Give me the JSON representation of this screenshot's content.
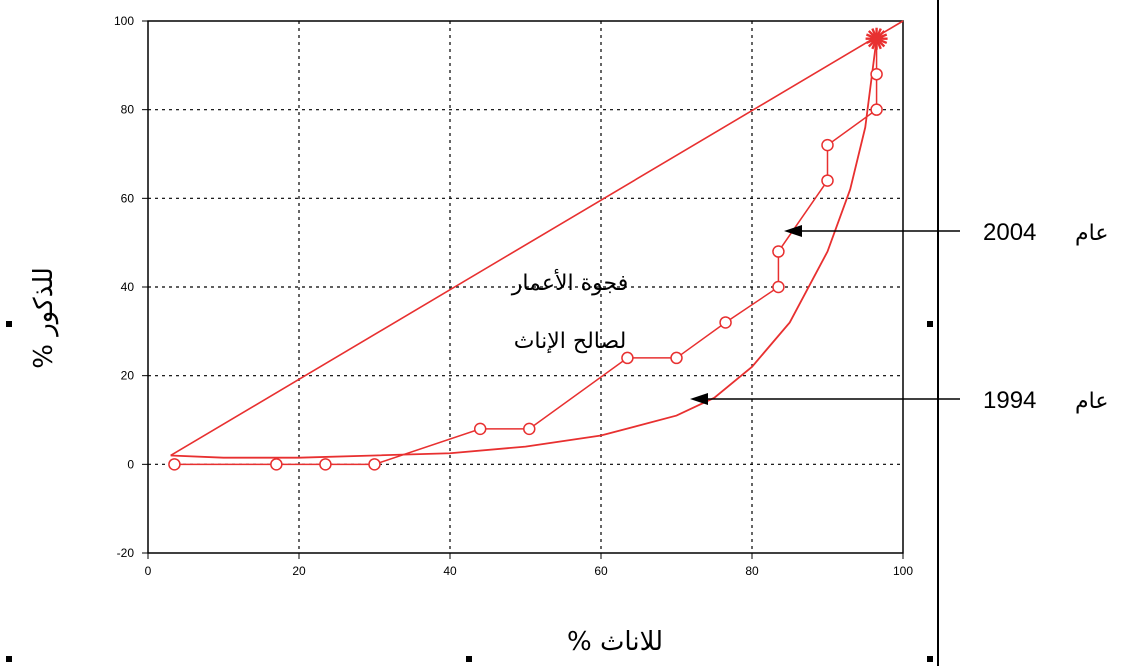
{
  "chart_data": {
    "type": "line",
    "xlabel": "% للاناث",
    "ylabel": "% للذكور",
    "xlim": [
      0,
      100
    ],
    "ylim": [
      -20,
      100
    ],
    "x_ticks": [
      0,
      20,
      40,
      60,
      80,
      100
    ],
    "y_ticks": [
      -20,
      0,
      20,
      40,
      60,
      80,
      100
    ],
    "grid": true,
    "annotation_lines": [
      "فجوة الأعمار",
      "لصالح الإناث"
    ],
    "series": [
      {
        "name": "عام 2004",
        "label_prefix": "عام",
        "label_year": "2004",
        "color": "#e83030",
        "markers": "circle",
        "points": [
          [
            3.5,
            0
          ],
          [
            17,
            0
          ],
          [
            23.5,
            0
          ],
          [
            30,
            0
          ],
          [
            44,
            8
          ],
          [
            50.5,
            8
          ],
          [
            63.5,
            24
          ],
          [
            70,
            24
          ],
          [
            76.5,
            32
          ],
          [
            83.5,
            48
          ],
          [
            83.5,
            40
          ],
          [
            90,
            64
          ],
          [
            90,
            72
          ],
          [
            96.5,
            88
          ],
          [
            96.5,
            80
          ]
        ]
      },
      {
        "name": "عام 1994",
        "label_prefix": "عام",
        "label_year": "1994",
        "color": "#e83030",
        "markers": "none",
        "points": [
          [
            3,
            2
          ],
          [
            10,
            1.5
          ],
          [
            20,
            1.5
          ],
          [
            30,
            2
          ],
          [
            40,
            2.5
          ],
          [
            50,
            4
          ],
          [
            60,
            6.5
          ],
          [
            70,
            11
          ],
          [
            75,
            15
          ],
          [
            80,
            22
          ],
          [
            85,
            32
          ],
          [
            90,
            48
          ],
          [
            93,
            62
          ],
          [
            95,
            76
          ],
          [
            96.5,
            96
          ]
        ]
      }
    ],
    "equality_line": [
      [
        3,
        2
      ],
      [
        100,
        100
      ]
    ],
    "endpoint": [
      96.5,
      96
    ]
  }
}
